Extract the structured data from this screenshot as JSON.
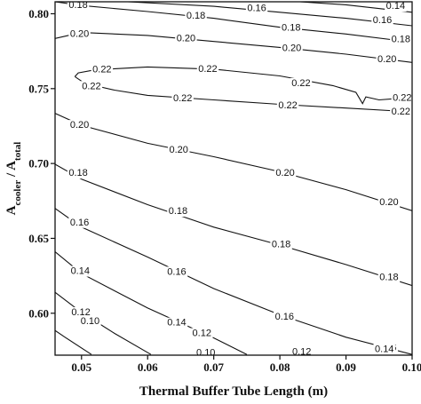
{
  "chart_data": {
    "type": "contour",
    "title": "",
    "xlabel": "Thermal Buffer Tube Length (m)",
    "ylabel": {
      "main": "A",
      "sub1": "cooler",
      "sep": " / A",
      "sub2": "total"
    },
    "xlim": [
      0.046,
      0.1
    ],
    "ylim": [
      0.572,
      0.808
    ],
    "xticks": [
      {
        "value": 0.05,
        "label": "0.05"
      },
      {
        "value": 0.06,
        "label": "0.06"
      },
      {
        "value": 0.07,
        "label": "0.07"
      },
      {
        "value": 0.08,
        "label": "0.08"
      },
      {
        "value": 0.09,
        "label": "0.09"
      },
      {
        "value": 0.1,
        "label": "0.10"
      }
    ],
    "yticks": [
      {
        "value": 0.6,
        "label": "0.60"
      },
      {
        "value": 0.65,
        "label": "0.65"
      },
      {
        "value": 0.7,
        "label": "0.70"
      },
      {
        "value": 0.75,
        "label": "0.75"
      },
      {
        "value": 0.8,
        "label": "0.80"
      }
    ],
    "grid": false,
    "contours": [
      {
        "level": 0.14,
        "points": [
          [
            0.083,
            0.808
          ],
          [
            0.09,
            0.806
          ],
          [
            0.096,
            0.803
          ],
          [
            0.1,
            0.801
          ]
        ],
        "labels": [
          {
            "text": "0.14",
            "x": 0.0975,
            "y": 0.805
          }
        ]
      },
      {
        "level": 0.16,
        "points": [
          [
            0.057,
            0.808
          ],
          [
            0.07,
            0.805
          ],
          [
            0.08,
            0.801
          ],
          [
            0.09,
            0.797
          ],
          [
            0.1,
            0.792
          ]
        ],
        "labels": [
          {
            "text": "0.16",
            "x": 0.0765,
            "y": 0.8035
          },
          {
            "text": "0.16",
            "x": 0.0955,
            "y": 0.7955
          }
        ]
      },
      {
        "level": 0.18,
        "points": [
          [
            0.046,
            0.808
          ],
          [
            0.05,
            0.8055
          ],
          [
            0.06,
            0.8015
          ],
          [
            0.07,
            0.797
          ],
          [
            0.08,
            0.791
          ],
          [
            0.09,
            0.7865
          ],
          [
            0.1,
            0.781
          ]
        ],
        "labels": [
          {
            "text": "0.18",
            "x": 0.0495,
            "y": 0.8055
          },
          {
            "text": "0.18",
            "x": 0.0673,
            "y": 0.7985
          },
          {
            "text": "0.18",
            "x": 0.0817,
            "y": 0.7905
          },
          {
            "text": "0.18",
            "x": 0.0983,
            "y": 0.7828
          }
        ]
      },
      {
        "level": 0.2,
        "points": [
          [
            0.046,
            0.7835
          ],
          [
            0.05,
            0.7875
          ],
          [
            0.06,
            0.7855
          ],
          [
            0.07,
            0.7815
          ],
          [
            0.08,
            0.7775
          ],
          [
            0.09,
            0.773
          ],
          [
            0.1,
            0.7675
          ]
        ],
        "labels": [
          {
            "text": "0.20",
            "x": 0.0497,
            "y": 0.7865
          },
          {
            "text": "0.20",
            "x": 0.0658,
            "y": 0.7835
          },
          {
            "text": "0.20",
            "x": 0.0818,
            "y": 0.777
          },
          {
            "text": "0.20",
            "x": 0.0962,
            "y": 0.7695
          }
        ]
      },
      {
        "level": 0.22,
        "points": [
          [
            0.049,
            0.758
          ],
          [
            0.0495,
            0.7605
          ],
          [
            0.052,
            0.7625
          ],
          [
            0.06,
            0.7645
          ],
          [
            0.07,
            0.763
          ],
          [
            0.08,
            0.7585
          ],
          [
            0.088,
            0.752
          ],
          [
            0.0915,
            0.7475
          ],
          [
            0.0925,
            0.74
          ],
          [
            0.093,
            0.7445
          ],
          [
            0.095,
            0.7425
          ],
          [
            0.098,
            0.7435
          ],
          [
            0.1,
            0.7445
          ]
        ],
        "labels": [
          {
            "text": "0.22",
            "x": 0.0531,
            "y": 0.7625
          },
          {
            "text": "0.22",
            "x": 0.0691,
            "y": 0.7628
          },
          {
            "text": "0.22",
            "x": 0.0832,
            "y": 0.7535
          },
          {
            "text": "0.22",
            "x": 0.0985,
            "y": 0.7438
          }
        ]
      },
      {
        "level": 0.22,
        "points": [
          [
            0.049,
            0.758
          ],
          [
            0.0505,
            0.7535
          ],
          [
            0.055,
            0.749
          ],
          [
            0.06,
            0.7455
          ],
          [
            0.07,
            0.7425
          ],
          [
            0.08,
            0.7395
          ],
          [
            0.09,
            0.737
          ],
          [
            0.1,
            0.7345
          ]
        ],
        "labels": [
          {
            "text": "0.22",
            "x": 0.0515,
            "y": 0.7515
          },
          {
            "text": "0.22",
            "x": 0.0653,
            "y": 0.7433
          },
          {
            "text": "0.22",
            "x": 0.0812,
            "y": 0.7385
          },
          {
            "text": "0.22",
            "x": 0.0983,
            "y": 0.7345
          }
        ]
      },
      {
        "level": 0.2,
        "points": [
          [
            0.046,
            0.7335
          ],
          [
            0.05,
            0.7255
          ],
          [
            0.06,
            0.7135
          ],
          [
            0.07,
            0.7045
          ],
          [
            0.08,
            0.6945
          ],
          [
            0.09,
            0.6825
          ],
          [
            0.1,
            0.6685
          ]
        ],
        "labels": [
          {
            "text": "0.20",
            "x": 0.0497,
            "y": 0.7255
          },
          {
            "text": "0.20",
            "x": 0.0647,
            "y": 0.709
          },
          {
            "text": "0.20",
            "x": 0.0808,
            "y": 0.6935
          },
          {
            "text": "0.20",
            "x": 0.0965,
            "y": 0.674
          }
        ]
      },
      {
        "level": 0.18,
        "points": [
          [
            0.046,
            0.6995
          ],
          [
            0.05,
            0.6895
          ],
          [
            0.06,
            0.6725
          ],
          [
            0.07,
            0.6575
          ],
          [
            0.08,
            0.6455
          ],
          [
            0.09,
            0.6325
          ],
          [
            0.1,
            0.6185
          ]
        ],
        "labels": [
          {
            "text": "0.18",
            "x": 0.0495,
            "y": 0.6935
          },
          {
            "text": "0.18",
            "x": 0.0646,
            "y": 0.668
          },
          {
            "text": "0.18",
            "x": 0.0802,
            "y": 0.6458
          },
          {
            "text": "0.18",
            "x": 0.0965,
            "y": 0.6238
          }
        ]
      },
      {
        "level": 0.16,
        "points": [
          [
            0.046,
            0.67
          ],
          [
            0.05,
            0.6575
          ],
          [
            0.06,
            0.6375
          ],
          [
            0.07,
            0.6165
          ],
          [
            0.08,
            0.599
          ],
          [
            0.09,
            0.584
          ],
          [
            0.1,
            0.5725
          ]
        ],
        "labels": [
          {
            "text": "0.16",
            "x": 0.0497,
            "y": 0.6605
          },
          {
            "text": "0.16",
            "x": 0.0644,
            "y": 0.6275
          },
          {
            "text": "0.16",
            "x": 0.0807,
            "y": 0.5975
          },
          {
            "text": "0.16",
            "x": 0.0962,
            "y": 0.5768
          }
        ]
      },
      {
        "level": 0.14,
        "points": [
          [
            0.046,
            0.641
          ],
          [
            0.05,
            0.6265
          ],
          [
            0.06,
            0.6035
          ],
          [
            0.07,
            0.5835
          ],
          [
            0.075,
            0.5725
          ]
        ],
        "labels": [
          {
            "text": "0.14",
            "x": 0.0498,
            "y": 0.628
          },
          {
            "text": "0.14",
            "x": 0.0644,
            "y": 0.5935
          }
        ]
      },
      {
        "level": 0.12,
        "points": [
          [
            0.046,
            0.614
          ],
          [
            0.05,
            0.6005
          ],
          [
            0.055,
            0.5865
          ],
          [
            0.0605,
            0.5725
          ]
        ],
        "labels": [
          {
            "text": "0.12",
            "x": 0.0499,
            "y": 0.6005
          }
        ]
      },
      {
        "level": 0.1,
        "points": [
          [
            0.046,
            0.5885
          ],
          [
            0.0475,
            0.584
          ],
          [
            0.0515,
            0.5725
          ]
        ],
        "labels": []
      }
    ],
    "extra_labels": [
      {
        "text": "0.14",
        "x": 0.0958,
        "y": 0.576
      },
      {
        "text": "0.12",
        "x": 0.0833,
        "y": 0.574
      },
      {
        "text": "0.12",
        "x": 0.0682,
        "y": 0.5865
      },
      {
        "text": "0.10",
        "x": 0.0688,
        "y": 0.5735
      },
      {
        "text": "0.10",
        "x": 0.0513,
        "y": 0.5945
      }
    ]
  }
}
